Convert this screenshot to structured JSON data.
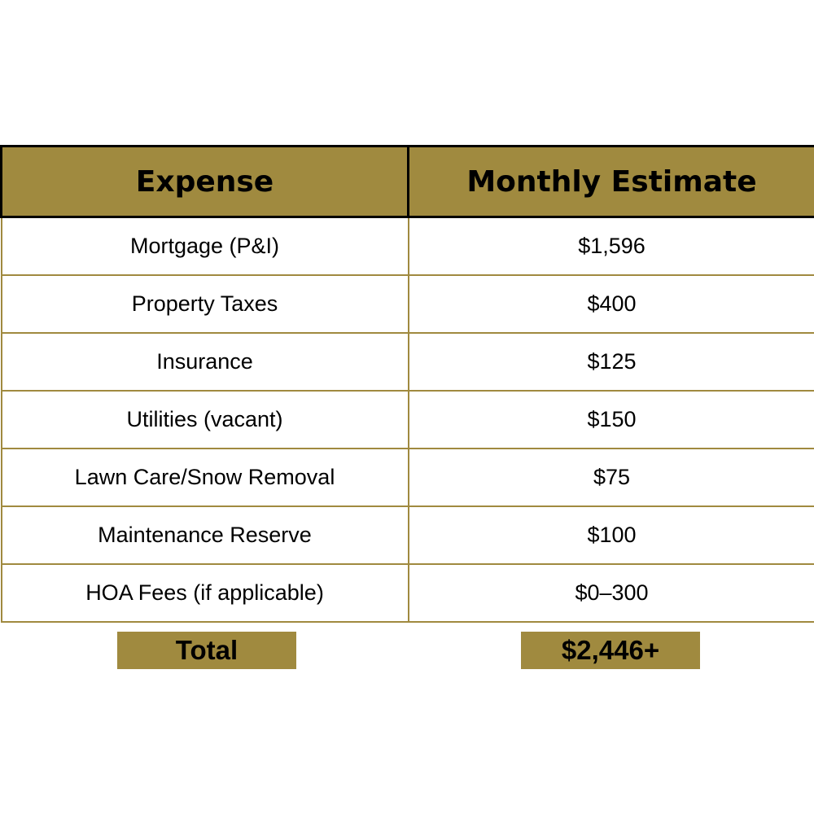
{
  "table": {
    "headers": [
      "Expense",
      "Monthly Estimate"
    ],
    "rows": [
      {
        "expense": "Mortgage (P&I)",
        "estimate": "$1,596"
      },
      {
        "expense": "Property Taxes",
        "estimate": "$400"
      },
      {
        "expense": "Insurance",
        "estimate": "$125"
      },
      {
        "expense": "Utilities (vacant)",
        "estimate": "$150"
      },
      {
        "expense": "Lawn Care/Snow Removal",
        "estimate": "$75"
      },
      {
        "expense": "Maintenance Reserve",
        "estimate": "$100"
      },
      {
        "expense": "HOA Fees (if applicable)",
        "estimate": "$0–300"
      }
    ]
  },
  "total": {
    "label": "Total",
    "value": "$2,446+"
  },
  "colors": {
    "accent": "#a08a3f",
    "border_header": "#000000",
    "background": "#ffffff"
  }
}
